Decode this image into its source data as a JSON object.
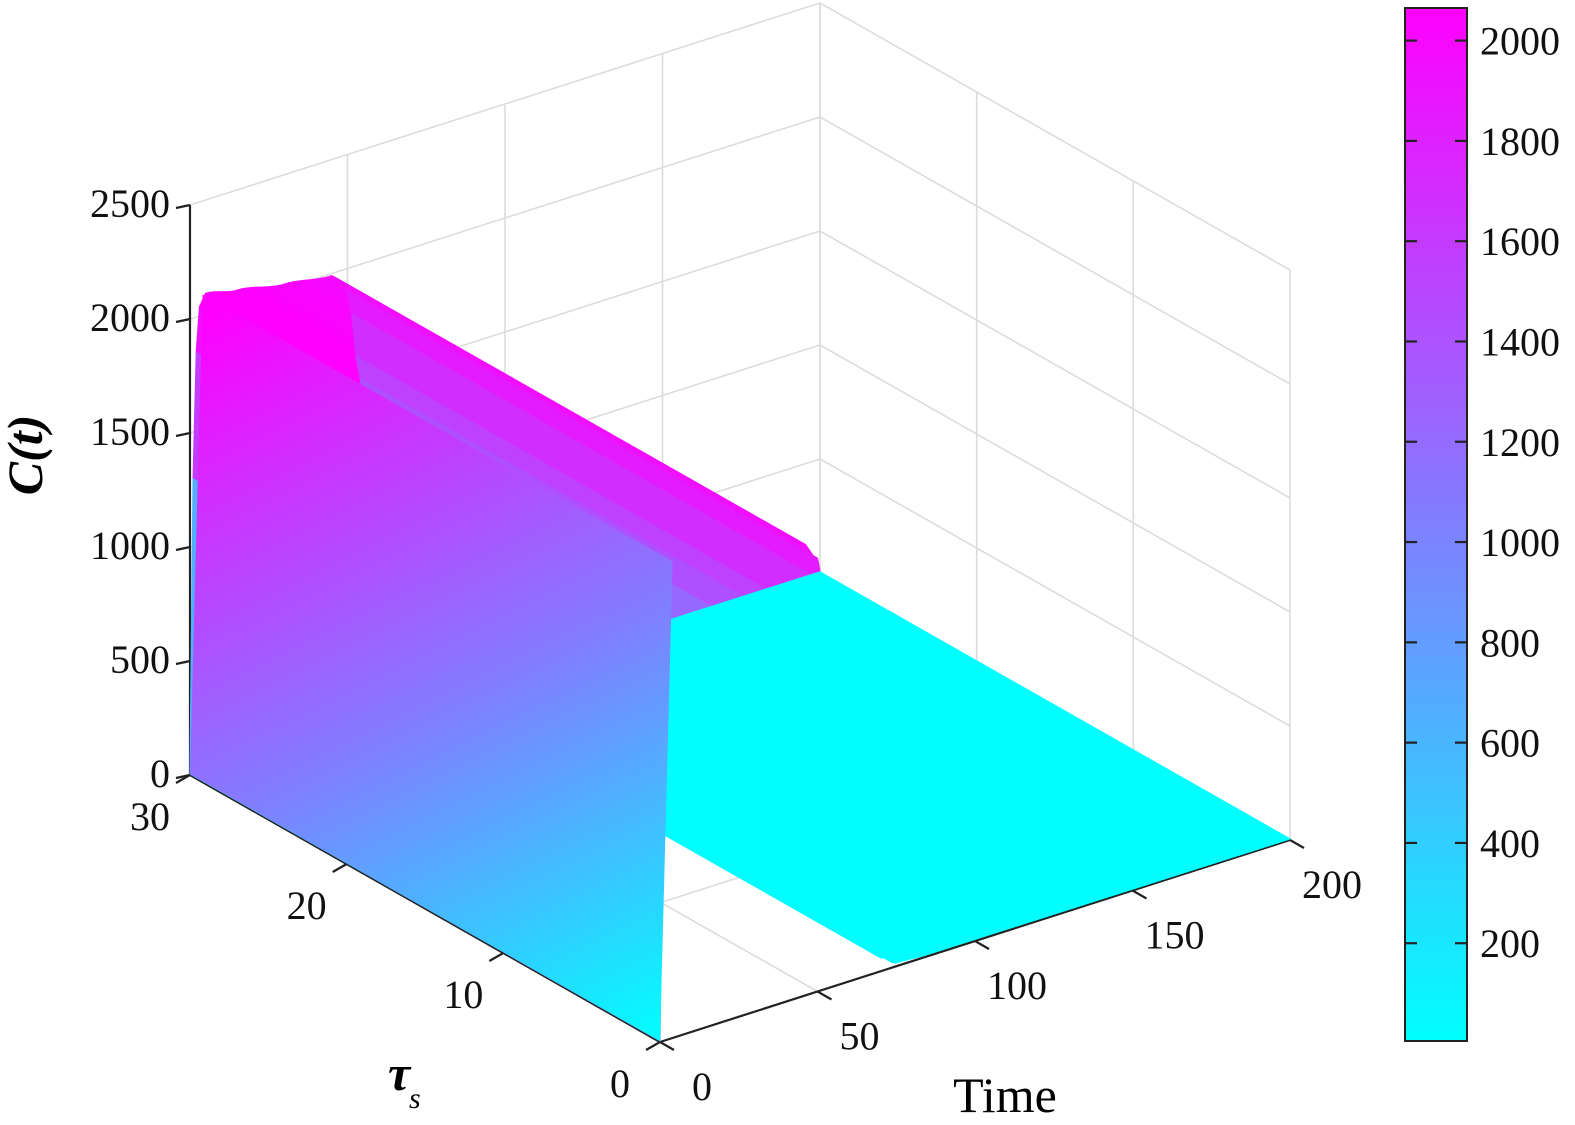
{
  "chart_data": {
    "type": "surface3d",
    "title": "",
    "axes": {
      "time": {
        "label": "Time",
        "range": [
          0,
          200
        ],
        "ticks": [
          "0",
          "50",
          "100",
          "150",
          "200"
        ]
      },
      "tau": {
        "label_main": "τ",
        "label_sub": "s",
        "range": [
          0,
          30
        ],
        "ticks": [
          "0",
          "10",
          "20",
          "30"
        ]
      },
      "c": {
        "label": "C(t)",
        "range": [
          0,
          2500
        ],
        "ticks": [
          "0",
          "500",
          "1000",
          "1500",
          "2000",
          "2500"
        ]
      }
    },
    "grid": true,
    "surface": {
      "description_values": {
        "peak_value": 2090,
        "peak_time": 4,
        "plateau_end_time": 50,
        "decay_to_zero_time": 75,
        "min_value": 5
      },
      "profile": [
        {
          "time": 0,
          "value": 5
        },
        {
          "time": 1,
          "value": 1300
        },
        {
          "time": 2,
          "value": 1850
        },
        {
          "time": 3,
          "value": 2040
        },
        {
          "time": 5,
          "value": 2090
        },
        {
          "time": 15,
          "value": 2060
        },
        {
          "time": 30,
          "value": 2020
        },
        {
          "time": 45,
          "value": 1990
        },
        {
          "time": 50,
          "value": 1900
        },
        {
          "time": 54,
          "value": 1500
        },
        {
          "time": 58,
          "value": 950
        },
        {
          "time": 62,
          "value": 480
        },
        {
          "time": 66,
          "value": 190
        },
        {
          "time": 70,
          "value": 60
        },
        {
          "time": 75,
          "value": 15
        },
        {
          "time": 85,
          "value": 8
        },
        {
          "time": 200,
          "value": 5
        }
      ],
      "same_for_all_tau": true
    },
    "colorbar": {
      "ticks": [
        "200",
        "400",
        "600",
        "800",
        "1000",
        "1200",
        "1400",
        "1600",
        "1800",
        "2000"
      ],
      "range": [
        5,
        2065
      ],
      "colors": {
        "low": "#00FFFF",
        "high": "#FF00FF"
      }
    }
  }
}
